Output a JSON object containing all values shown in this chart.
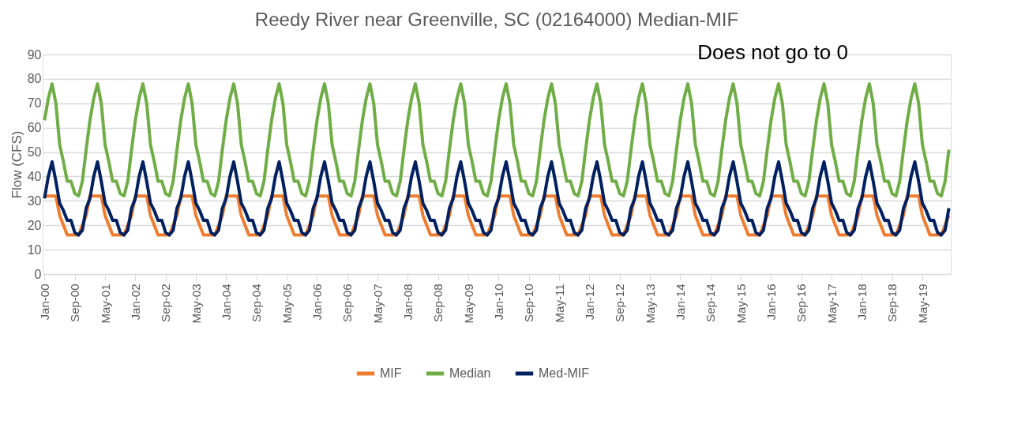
{
  "chart_data": {
    "type": "line",
    "title": "Reedy River near Greenville, SC (02164000) Median-MIF",
    "ylabel": "Flow (CFS)",
    "annotations": [
      "Does not go to 0"
    ],
    "categories": [
      "Jan-00",
      null,
      null,
      null,
      null,
      null,
      null,
      null,
      "Sep-00",
      null,
      null,
      null,
      null,
      null,
      null,
      null,
      "May-01",
      null,
      null,
      null,
      null,
      null,
      null,
      null,
      "Jan-02",
      null,
      null,
      null,
      null,
      null,
      null,
      null,
      "Sep-02",
      null,
      null,
      null,
      null,
      null,
      null,
      null,
      "May-03",
      null,
      null,
      null,
      null,
      null,
      null,
      null,
      "Jan-04",
      null,
      null,
      null,
      null,
      null,
      null,
      null,
      "Sep-04",
      null,
      null,
      null,
      null,
      null,
      null,
      null,
      "May-05",
      null,
      null,
      null,
      null,
      null,
      null,
      null,
      "Jan-06",
      null,
      null,
      null,
      null,
      null,
      null,
      null,
      "Sep-06",
      null,
      null,
      null,
      null,
      null,
      null,
      null,
      "May-07",
      null,
      null,
      null,
      null,
      null,
      null,
      null,
      "Jan-08",
      null,
      null,
      null,
      null,
      null,
      null,
      null,
      "Sep-08",
      null,
      null,
      null,
      null,
      null,
      null,
      null,
      "May-09",
      null,
      null,
      null,
      null,
      null,
      null,
      null,
      "Jan-10",
      null,
      null,
      null,
      null,
      null,
      null,
      null,
      "Sep-10",
      null,
      null,
      null,
      null,
      null,
      null,
      null,
      "May-11",
      null,
      null,
      null,
      null,
      null,
      null,
      null,
      "Jan-12",
      null,
      null,
      null,
      null,
      null,
      null,
      null,
      "Sep-12",
      null,
      null,
      null,
      null,
      null,
      null,
      null,
      "May-13",
      null,
      null,
      null,
      null,
      null,
      null,
      null,
      "Jan-14",
      null,
      null,
      null,
      null,
      null,
      null,
      null,
      "Sep-14",
      null,
      null,
      null,
      null,
      null,
      null,
      null,
      "May-15",
      null,
      null,
      null,
      null,
      null,
      null,
      null,
      "Jan-16",
      null,
      null,
      null,
      null,
      null,
      null,
      null,
      "Sep-16",
      null,
      null,
      null,
      null,
      null,
      null,
      null,
      "May-17",
      null,
      null,
      null,
      null,
      null,
      null,
      null,
      "Jan-18",
      null,
      null,
      null,
      null,
      null,
      null,
      null,
      "Sep-18",
      null,
      null,
      null,
      null,
      null,
      null,
      null,
      "May-19",
      null,
      null,
      null,
      null,
      null,
      null,
      null
    ],
    "series": [
      {
        "name": "MIF",
        "color": "#ed7d31",
        "values": [
          32,
          32,
          32,
          32,
          24,
          20,
          16,
          16,
          16,
          16,
          20,
          24,
          32,
          32,
          32,
          32,
          24,
          20,
          16,
          16,
          16,
          16,
          20,
          24,
          32,
          32,
          32,
          32,
          24,
          20,
          16,
          16,
          16,
          16,
          20,
          24,
          32,
          32,
          32,
          32,
          24,
          20,
          16,
          16,
          16,
          16,
          20,
          24,
          32,
          32,
          32,
          32,
          24,
          20,
          16,
          16,
          16,
          16,
          20,
          24,
          32,
          32,
          32,
          32,
          24,
          20,
          16,
          16,
          16,
          16,
          20,
          24,
          32,
          32,
          32,
          32,
          24,
          20,
          16,
          16,
          16,
          16,
          20,
          24,
          32,
          32,
          32,
          32,
          24,
          20,
          16,
          16,
          16,
          16,
          20,
          24,
          32,
          32,
          32,
          32,
          24,
          20,
          16,
          16,
          16,
          16,
          20,
          24,
          32,
          32,
          32,
          32,
          24,
          20,
          16,
          16,
          16,
          16,
          20,
          24,
          32,
          32,
          32,
          32,
          24,
          20,
          16,
          16,
          16,
          16,
          20,
          24,
          32,
          32,
          32,
          32,
          24,
          20,
          16,
          16,
          16,
          16,
          20,
          24,
          32,
          32,
          32,
          32,
          24,
          20,
          16,
          16,
          16,
          16,
          20,
          24,
          32,
          32,
          32,
          32,
          24,
          20,
          16,
          16,
          16,
          16,
          20,
          24,
          32,
          32,
          32,
          32,
          24,
          20,
          16,
          16,
          16,
          16,
          20,
          24,
          32,
          32,
          32,
          32,
          24,
          20,
          16,
          16,
          16,
          16,
          20,
          24,
          32,
          32,
          32,
          32,
          24,
          20,
          16,
          16,
          16,
          16,
          20,
          24,
          32,
          32,
          32,
          32,
          24,
          20,
          16,
          16,
          16,
          16,
          20,
          24,
          32,
          32,
          32,
          32,
          24,
          20,
          16,
          16,
          16,
          16,
          20,
          24,
          32,
          32,
          32,
          32,
          24,
          20,
          16,
          16,
          16,
          16,
          20,
          24
        ]
      },
      {
        "name": "Median",
        "color": "#70ad47",
        "values": [
          63,
          72,
          78,
          70,
          53,
          46,
          38,
          38,
          33,
          32,
          38,
          51,
          63,
          72,
          78,
          70,
          53,
          46,
          38,
          38,
          33,
          32,
          38,
          51,
          63,
          72,
          78,
          70,
          53,
          46,
          38,
          38,
          33,
          32,
          38,
          51,
          63,
          72,
          78,
          70,
          53,
          46,
          38,
          38,
          33,
          32,
          38,
          51,
          63,
          72,
          78,
          70,
          53,
          46,
          38,
          38,
          33,
          32,
          38,
          51,
          63,
          72,
          78,
          70,
          53,
          46,
          38,
          38,
          33,
          32,
          38,
          51,
          63,
          72,
          78,
          70,
          53,
          46,
          38,
          38,
          33,
          32,
          38,
          51,
          63,
          72,
          78,
          70,
          53,
          46,
          38,
          38,
          33,
          32,
          38,
          51,
          63,
          72,
          78,
          70,
          53,
          46,
          38,
          38,
          33,
          32,
          38,
          51,
          63,
          72,
          78,
          70,
          53,
          46,
          38,
          38,
          33,
          32,
          38,
          51,
          63,
          72,
          78,
          70,
          53,
          46,
          38,
          38,
          33,
          32,
          38,
          51,
          63,
          72,
          78,
          70,
          53,
          46,
          38,
          38,
          33,
          32,
          38,
          51,
          63,
          72,
          78,
          70,
          53,
          46,
          38,
          38,
          33,
          32,
          38,
          51,
          63,
          72,
          78,
          70,
          53,
          46,
          38,
          38,
          33,
          32,
          38,
          51,
          63,
          72,
          78,
          70,
          53,
          46,
          38,
          38,
          33,
          32,
          38,
          51,
          63,
          72,
          78,
          70,
          53,
          46,
          38,
          38,
          33,
          32,
          38,
          51,
          63,
          72,
          78,
          70,
          53,
          46,
          38,
          38,
          33,
          32,
          38,
          51,
          63,
          72,
          78,
          70,
          53,
          46,
          38,
          38,
          33,
          32,
          38,
          51,
          63,
          72,
          78,
          70,
          53,
          46,
          38,
          38,
          33,
          32,
          38,
          51,
          63,
          72,
          78,
          70,
          53,
          46,
          38,
          38,
          33,
          32,
          38,
          51
        ]
      },
      {
        "name": "Med-MIF",
        "color": "#002060",
        "values": [
          31,
          40,
          46,
          38,
          29,
          26,
          22,
          22,
          17,
          16,
          18,
          27,
          31,
          40,
          46,
          38,
          29,
          26,
          22,
          22,
          17,
          16,
          18,
          27,
          31,
          40,
          46,
          38,
          29,
          26,
          22,
          22,
          17,
          16,
          18,
          27,
          31,
          40,
          46,
          38,
          29,
          26,
          22,
          22,
          17,
          16,
          18,
          27,
          31,
          40,
          46,
          38,
          29,
          26,
          22,
          22,
          17,
          16,
          18,
          27,
          31,
          40,
          46,
          38,
          29,
          26,
          22,
          22,
          17,
          16,
          18,
          27,
          31,
          40,
          46,
          38,
          29,
          26,
          22,
          22,
          17,
          16,
          18,
          27,
          31,
          40,
          46,
          38,
          29,
          26,
          22,
          22,
          17,
          16,
          18,
          27,
          31,
          40,
          46,
          38,
          29,
          26,
          22,
          22,
          17,
          16,
          18,
          27,
          31,
          40,
          46,
          38,
          29,
          26,
          22,
          22,
          17,
          16,
          18,
          27,
          31,
          40,
          46,
          38,
          29,
          26,
          22,
          22,
          17,
          16,
          18,
          27,
          31,
          40,
          46,
          38,
          29,
          26,
          22,
          22,
          17,
          16,
          18,
          27,
          31,
          40,
          46,
          38,
          29,
          26,
          22,
          22,
          17,
          16,
          18,
          27,
          31,
          40,
          46,
          38,
          29,
          26,
          22,
          22,
          17,
          16,
          18,
          27,
          31,
          40,
          46,
          38,
          29,
          26,
          22,
          22,
          17,
          16,
          18,
          27,
          31,
          40,
          46,
          38,
          29,
          26,
          22,
          22,
          17,
          16,
          18,
          27,
          31,
          40,
          46,
          38,
          29,
          26,
          22,
          22,
          17,
          16,
          18,
          27,
          31,
          40,
          46,
          38,
          29,
          26,
          22,
          22,
          17,
          16,
          18,
          27,
          31,
          40,
          46,
          38,
          29,
          26,
          22,
          22,
          17,
          16,
          18,
          27,
          31,
          40,
          46,
          38,
          29,
          26,
          22,
          22,
          17,
          16,
          18,
          27
        ]
      }
    ],
    "ylim": [
      0,
      90
    ],
    "yticks": [
      0,
      10,
      20,
      30,
      40,
      50,
      60,
      70,
      80,
      90
    ],
    "grid": "y",
    "legend": "bottom",
    "marker": "none",
    "line_style": "solid"
  }
}
